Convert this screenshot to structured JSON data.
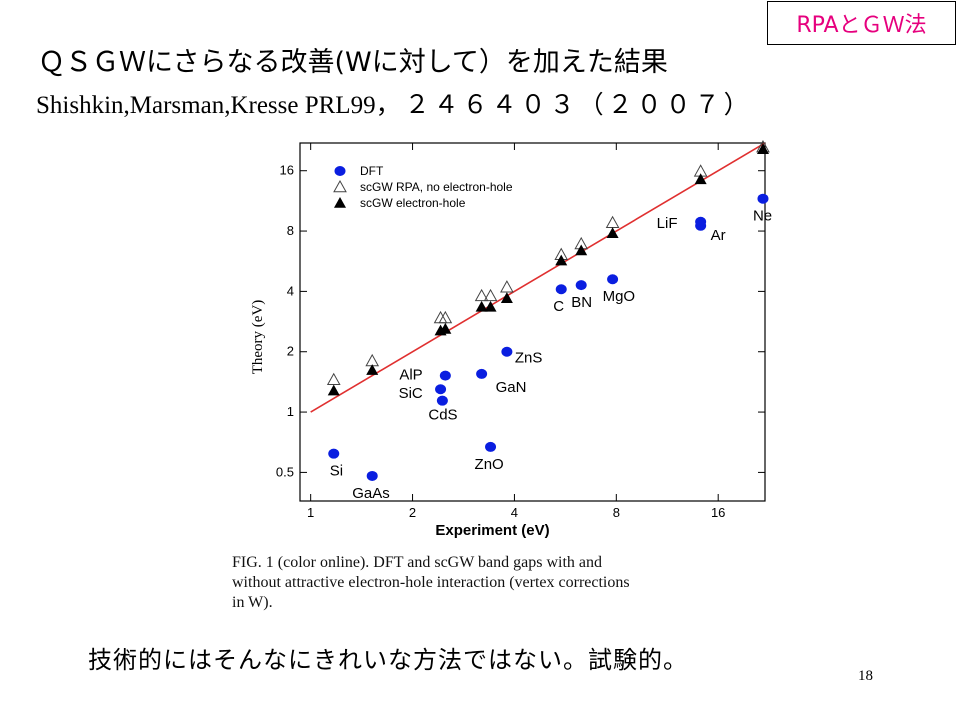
{
  "header": {
    "tag": "RPAとＧＷ法",
    "title_line1": "ＱＳＧＷにさらなる改善(Wに対して）を加えた結果",
    "title_line2_authors": "Shishkin,Marsman,Kresse PRL99",
    "title_line2_ref": "，２４６４０３（２００７）"
  },
  "chart_data": {
    "type": "scatter",
    "xscale": "log2",
    "yscale": "log2",
    "xlabel": "Experiment (eV)",
    "ylabel": "Theory (eV)",
    "xlim": [
      0.93,
      22
    ],
    "ylim": [
      0.36,
      22
    ],
    "xticks": [
      1,
      2,
      4,
      8,
      16
    ],
    "yticks": [
      0.5,
      1,
      2,
      4,
      8,
      16
    ],
    "xtick_labels": [
      "1",
      "2",
      "4",
      "8",
      "16"
    ],
    "ytick_labels": [
      "0.5",
      "1",
      "2",
      "4",
      "8",
      "16"
    ],
    "grid": false,
    "legend_position": "top-left",
    "diagonal": {
      "x": [
        1,
        22
      ],
      "y": [
        1,
        22
      ],
      "color": "#e03030"
    },
    "series": [
      {
        "name": "DFT",
        "marker": "filled-circle",
        "color": "#0a1ee0",
        "points": [
          {
            "label": "Si",
            "x": 1.17,
            "y": 0.62
          },
          {
            "label": "GaAs",
            "x": 1.52,
            "y": 0.48
          },
          {
            "label": "AlP",
            "x": 2.5,
            "y": 1.52
          },
          {
            "label": "SiC",
            "x": 2.42,
            "y": 1.3
          },
          {
            "label": "CdS",
            "x": 2.45,
            "y": 1.14
          },
          {
            "label": "GaN",
            "x": 3.2,
            "y": 1.55
          },
          {
            "label": "ZnS",
            "x": 3.8,
            "y": 2.0
          },
          {
            "label": "ZnO",
            "x": 3.4,
            "y": 0.67
          },
          {
            "label": "C",
            "x": 5.5,
            "y": 4.1
          },
          {
            "label": "BN",
            "x": 6.3,
            "y": 4.3
          },
          {
            "label": "MgO",
            "x": 7.8,
            "y": 4.6
          },
          {
            "label": "LiF",
            "x": 14.2,
            "y": 8.9
          },
          {
            "label": "Ar",
            "x": 14.2,
            "y": 8.5
          },
          {
            "label": "Ne",
            "x": 21.7,
            "y": 11.6
          }
        ]
      },
      {
        "name": "scGW RPA, no electron-hole",
        "marker": "open-triangle",
        "color": "#444444",
        "points": [
          {
            "x": 1.17,
            "y": 1.45
          },
          {
            "x": 1.52,
            "y": 1.8
          },
          {
            "x": 2.42,
            "y": 2.95
          },
          {
            "x": 2.5,
            "y": 2.95
          },
          {
            "x": 3.2,
            "y": 3.8
          },
          {
            "x": 3.4,
            "y": 3.8
          },
          {
            "x": 3.8,
            "y": 4.2
          },
          {
            "x": 5.5,
            "y": 6.1
          },
          {
            "x": 6.3,
            "y": 6.9
          },
          {
            "x": 7.8,
            "y": 8.8
          },
          {
            "x": 14.2,
            "y": 15.9
          },
          {
            "x": 21.7,
            "y": 21.0
          }
        ]
      },
      {
        "name": "scGW electron-hole",
        "marker": "filled-triangle",
        "color": "#000000",
        "points": [
          {
            "x": 1.17,
            "y": 1.28
          },
          {
            "x": 1.52,
            "y": 1.62
          },
          {
            "x": 2.42,
            "y": 2.55
          },
          {
            "x": 2.5,
            "y": 2.6
          },
          {
            "x": 3.2,
            "y": 3.35
          },
          {
            "x": 3.4,
            "y": 3.35
          },
          {
            "x": 3.8,
            "y": 3.7
          },
          {
            "x": 5.5,
            "y": 5.7
          },
          {
            "x": 6.3,
            "y": 6.4
          },
          {
            "x": 7.8,
            "y": 7.8
          },
          {
            "x": 14.2,
            "y": 14.5
          },
          {
            "x": 21.7,
            "y": 20.5
          }
        ]
      }
    ]
  },
  "caption": {
    "line1": "FIG. 1 (color online).   DFT and scGW band gaps with and",
    "line2": "without attractive electron-hole interaction (vertex corrections",
    "line3": "in W)."
  },
  "footer": {
    "comment": "技術的にはそんなにきれいな方法ではない。試験的。",
    "page_number": "18"
  }
}
